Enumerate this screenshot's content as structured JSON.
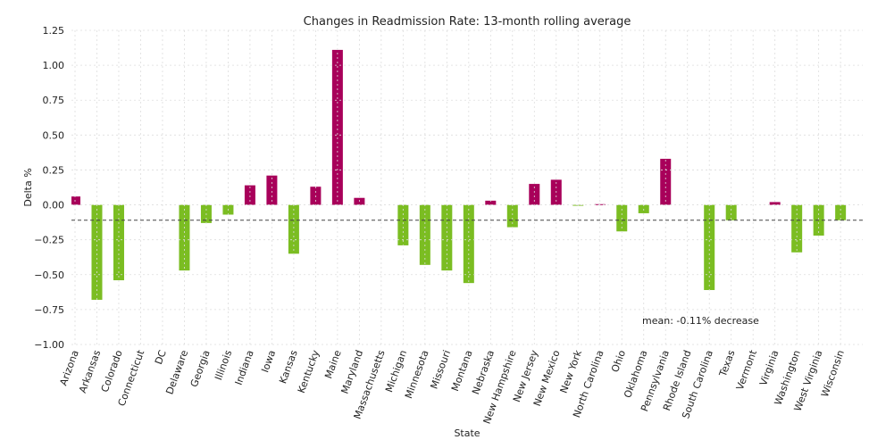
{
  "chart_data": {
    "type": "bar",
    "title": "Changes in Readmission Rate: 13-month rolling average",
    "xlabel": "State",
    "ylabel": "Delta %",
    "categories": [
      "Arizona",
      "Arkansas",
      "Colorado",
      "Connecticut",
      "DC",
      "Delaware",
      "Georgia",
      "Illinois",
      "Indiana",
      "Iowa",
      "Kansas",
      "Kentucky",
      "Maine",
      "Maryland",
      "Massachusetts",
      "Michigan",
      "Minnesota",
      "Missouri",
      "Montana",
      "Nebraska",
      "New Hampshire",
      "New Jersey",
      "New Mexico",
      "New York",
      "North Carolina",
      "Ohio",
      "Oklahoma",
      "Pennsylvania",
      "Rhode Island",
      "South Carolina",
      "Texas",
      "Vermont",
      "Virginia",
      "Washington",
      "West Virginia",
      "Wisconsin"
    ],
    "values": [
      0.06,
      -0.68,
      -0.54,
      null,
      null,
      -0.47,
      -0.13,
      -0.07,
      0.14,
      0.21,
      -0.35,
      0.13,
      1.11,
      0.05,
      null,
      -0.29,
      -0.43,
      -0.47,
      -0.56,
      0.03,
      -0.16,
      0.15,
      0.18,
      -0.005,
      0.005,
      -0.19,
      -0.06,
      0.33,
      null,
      -0.61,
      -0.11,
      null,
      0.02,
      -0.34,
      -0.22,
      -0.11
    ],
    "positive_color": "#a8005a",
    "negative_color": "#7bbd22",
    "mean": -0.11,
    "annotation": "mean: -0.11% decrease",
    "ylim": [
      -1.0,
      1.25
    ],
    "yticks": [
      {
        "value": -1.0,
        "label": "−1.00"
      },
      {
        "value": -0.75,
        "label": "−0.75"
      },
      {
        "value": -0.5,
        "label": "−0.50"
      },
      {
        "value": -0.25,
        "label": "−0.25"
      },
      {
        "value": 0,
        "label": "0.00"
      },
      0.25,
      {
        "value": 0.5,
        "label": "0.50"
      },
      0.75,
      {
        "value": 1.0,
        "label": "1.00"
      },
      1.25
    ],
    "grid": true
  }
}
